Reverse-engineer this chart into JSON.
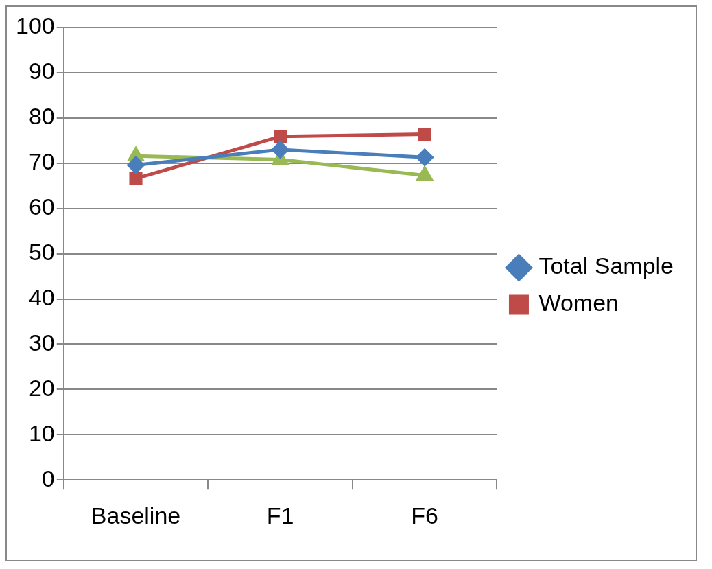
{
  "chart_data": {
    "type": "line",
    "categories": [
      "Baseline",
      "F1",
      "F6"
    ],
    "series": [
      {
        "name": "Total Sample",
        "color": "#4a7ebb",
        "values": [
          69.6,
          73.0,
          71.3
        ],
        "marker": "diamond"
      },
      {
        "name": "Women",
        "color": "#be4b48",
        "values": [
          66.6,
          75.9,
          76.4
        ],
        "marker": "square"
      },
      {
        "color": "#98b954",
        "values": [
          71.6,
          70.8,
          67.3
        ],
        "marker": "triangle"
      }
    ],
    "ylim": [
      0,
      100
    ],
    "yticks": [
      0,
      10,
      20,
      30,
      40,
      50,
      60,
      70,
      80,
      90,
      100
    ],
    "grid": "y",
    "legend": "right"
  }
}
